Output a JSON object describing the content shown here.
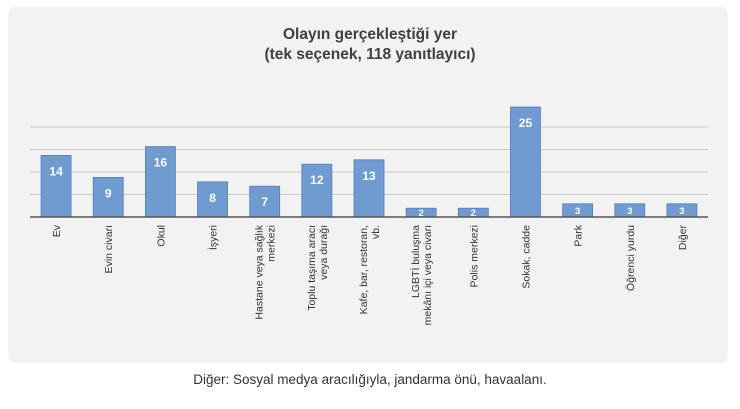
{
  "chart_data": {
    "type": "bar",
    "title": "Olayın gerçekleştiği yer",
    "subtitle": "(tek seçenek, 118 yanıtlayıcı)",
    "categories": [
      "Ev",
      "Evin civarı",
      "Okul",
      "İşyeri",
      "Hastane veya sağlık merkezi",
      "Toplu taşıma aracı veya durağı",
      "Kafe, bar, restoran, vb.",
      "LGBTİ buluşma mekânı içi veya civarı",
      "Polis merkezi",
      "Sokak, cadde",
      "Park",
      "Öğrenci yurdu",
      "Diğer"
    ],
    "category_lines": [
      [
        "Ev"
      ],
      [
        "Evin civarı"
      ],
      [
        "Okul"
      ],
      [
        "İşyeri"
      ],
      [
        "Hastane veya sağlık",
        "merkezi"
      ],
      [
        "Toplu taşıma aracı",
        "veya durağı"
      ],
      [
        "Kafe, bar, restoran,",
        "vb."
      ],
      [
        "LGBTİ buluşma",
        "mekânı içi veya civarı"
      ],
      [
        "Polis merkezi"
      ],
      [
        "Sokak, cadde"
      ],
      [
        "Park"
      ],
      [
        "Öğrenci yurdu"
      ],
      [
        "Diğer"
      ]
    ],
    "values": [
      14,
      9,
      16,
      8,
      7,
      12,
      13,
      2,
      2,
      25,
      3,
      3,
      3
    ],
    "ylim": [
      0,
      25
    ],
    "grid": true,
    "bar_color": "#6f9bd1",
    "bar_edge_color": "#4f7fbf",
    "grid_color": "#c8c8c8",
    "axis_color": "#555555",
    "label_color": "#ffffff"
  },
  "footnote": "Diğer: Sosyal medya aracılığıyla, jandarma önü, havaalanı."
}
